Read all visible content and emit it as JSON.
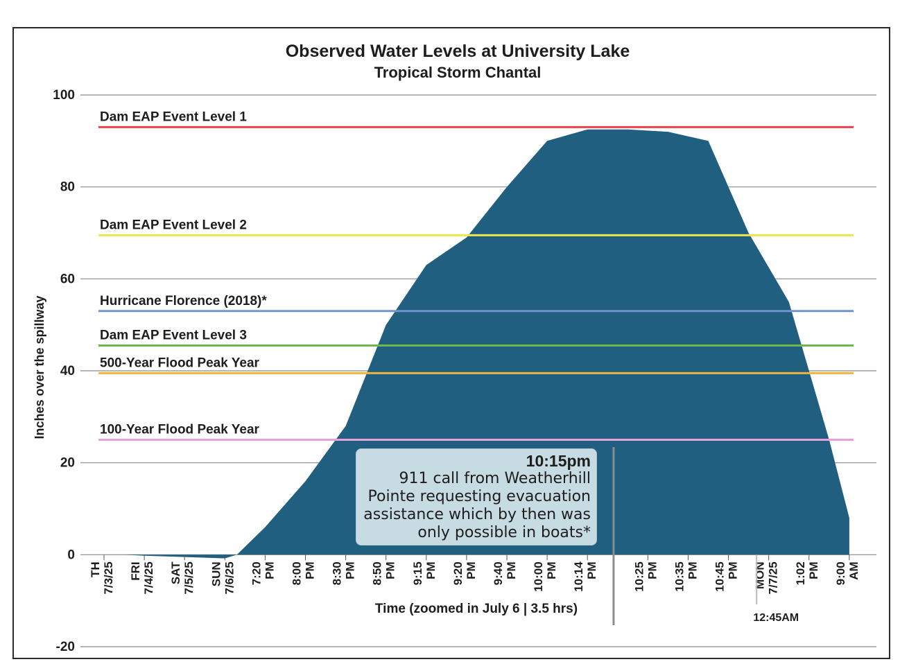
{
  "chart_data": {
    "type": "area",
    "title": "Observed Water Levels at University Lake",
    "subtitle": "Tropical Storm Chantal",
    "ylabel": "Inches over the spillway",
    "xlabel": "Time (zoomed in July 6 | 3.5 hrs)",
    "ylim": [
      -20,
      100
    ],
    "yticks": [
      -20,
      0,
      20,
      40,
      60,
      80,
      100
    ],
    "grid": true,
    "area_color": "#215f80",
    "x_ticks": [
      {
        "line1": "TH",
        "line2": "7/3/25",
        "index": 0
      },
      {
        "line1": "FRI",
        "line2": "7/4/25",
        "index": 1
      },
      {
        "line1": "SAT",
        "line2": "7/5/25",
        "index": 2
      },
      {
        "line1": "SUN",
        "line2": "7/6/25",
        "index": 3
      },
      {
        "line1": "7:20",
        "line2": "PM",
        "index": 4
      },
      {
        "line1": "8:00",
        "line2": "PM",
        "index": 5
      },
      {
        "line1": "8:30",
        "line2": "PM",
        "index": 6
      },
      {
        "line1": "8:50",
        "line2": "PM",
        "index": 7
      },
      {
        "line1": "9:15",
        "line2": "PM",
        "index": 8
      },
      {
        "line1": "9:20",
        "line2": "PM",
        "index": 9
      },
      {
        "line1": "9:40",
        "line2": "PM",
        "index": 10
      },
      {
        "line1": "10:00",
        "line2": "PM",
        "index": 11
      },
      {
        "line1": "10:14",
        "line2": "PM",
        "index": 12
      },
      {
        "line1": "10:25",
        "line2": "PM",
        "index": 13.5
      },
      {
        "line1": "10:35",
        "line2": "PM",
        "index": 14.5
      },
      {
        "line1": "10:45",
        "line2": "PM",
        "index": 15.5
      },
      {
        "line1": "MON",
        "line2": "7/7/25",
        "index": 16.5
      },
      {
        "line1": "1:02",
        "line2": "PM",
        "index": 17.5
      },
      {
        "line1": "9:00",
        "line2": "AM",
        "index": 18.5
      }
    ],
    "series": [
      {
        "name": "Observed water level",
        "points": [
          {
            "i": 0.5,
            "y": 0
          },
          {
            "i": 1,
            "y": -0.2
          },
          {
            "i": 2,
            "y": -0.5
          },
          {
            "i": 3,
            "y": -0.8
          },
          {
            "i": 3.3,
            "y": 0
          },
          {
            "i": 4,
            "y": 6
          },
          {
            "i": 5,
            "y": 16
          },
          {
            "i": 6,
            "y": 28
          },
          {
            "i": 7,
            "y": 50
          },
          {
            "i": 8,
            "y": 63
          },
          {
            "i": 9,
            "y": 69
          },
          {
            "i": 10,
            "y": 80
          },
          {
            "i": 11,
            "y": 90
          },
          {
            "i": 12,
            "y": 92.5
          },
          {
            "i": 13,
            "y": 92.5
          },
          {
            "i": 14,
            "y": 92
          },
          {
            "i": 15,
            "y": 90
          },
          {
            "i": 16,
            "y": 70
          },
          {
            "i": 17,
            "y": 55
          },
          {
            "i": 17.5,
            "y": 40
          },
          {
            "i": 18,
            "y": 25
          },
          {
            "i": 18.5,
            "y": 8
          },
          {
            "i": 18.5,
            "y": 0
          }
        ]
      }
    ],
    "reference_lines": [
      {
        "label": "Dam EAP Event Level 1",
        "value": 93,
        "color": "#e8424a"
      },
      {
        "label": "Dam EAP Event Level 2",
        "value": 69.5,
        "color": "#f0e64a"
      },
      {
        "label": "Hurricane Florence (2018)*",
        "value": 53,
        "color": "#6f94cf"
      },
      {
        "label": "Dam EAP Event Level 3",
        "value": 45.5,
        "color": "#6cb84a"
      },
      {
        "label": "500-Year Flood Peak Year",
        "value": 39.5,
        "color": "#f1b43c"
      },
      {
        "label": "100-Year Flood Peak Year",
        "value": 25,
        "color": "#e7a1d8"
      }
    ],
    "annotation": {
      "time": "10:15pm",
      "text_lines": [
        "911 call from Weatherhill",
        "Pointe requesting evacuation",
        "assistance which by then was",
        "only possible in boats*"
      ],
      "marker_index": 12.65
    },
    "marker_label": {
      "text": "12:45AM",
      "index": 16.2
    }
  }
}
